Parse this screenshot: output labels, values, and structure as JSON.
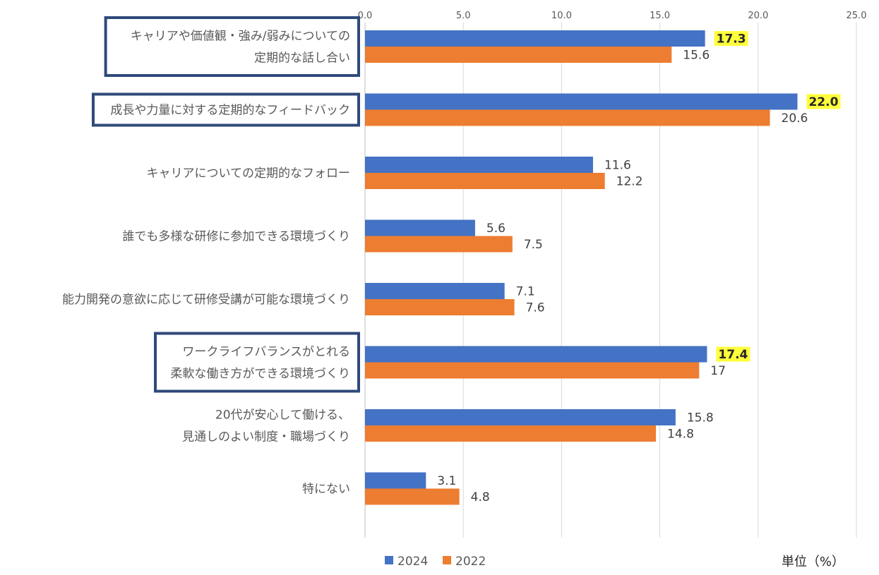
{
  "chart_data": {
    "type": "bar",
    "orientation": "horizontal",
    "categories": [
      [
        "キャリアや価値観・強み/弱みについての",
        "定期的な話し合い"
      ],
      [
        "成長や力量に対する定期的なフィードバック"
      ],
      [
        "キャリアについての定期的なフォロー"
      ],
      [
        "誰でも多様な研修に参加できる環境づくり"
      ],
      [
        "能力開発の意欲に応じて研修受講が可能な環境づくり"
      ],
      [
        "ワークライフバランスがとれる",
        "柔軟な働き方ができる環境づくり"
      ],
      [
        "20代が安心して働ける、",
        "見通しのよい制度・職場づくり"
      ],
      [
        "特にない"
      ]
    ],
    "boxed_categories": [
      0,
      1,
      5
    ],
    "series": [
      {
        "name": "2024",
        "color": "#4472C4",
        "values": [
          17.3,
          22.0,
          11.6,
          5.6,
          7.1,
          17.4,
          15.8,
          3.1
        ],
        "labels": [
          "17.3",
          "22.0",
          "11.6",
          "5.6",
          "7.1",
          "17.4",
          "15.8",
          "3.1"
        ],
        "highlighted": [
          0,
          1,
          5
        ]
      },
      {
        "name": "2022",
        "color": "#ED7D31",
        "values": [
          15.6,
          20.6,
          12.2,
          7.5,
          7.6,
          17,
          14.8,
          4.8
        ],
        "labels": [
          "15.6",
          "20.6",
          "12.2",
          "7.5",
          "7.6",
          "17",
          "14.8",
          "4.8"
        ],
        "highlighted": []
      }
    ],
    "xlim": [
      0,
      25
    ],
    "xticks": [
      "0.0",
      "5.0",
      "10.0",
      "15.0",
      "20.0",
      "25.0"
    ],
    "xtick_values": [
      0,
      5,
      10,
      15,
      20,
      25
    ],
    "grid": true,
    "legend_position": "bottom",
    "highlight_color": "#FFFF3C",
    "box_color": "#2F4A7A",
    "unit_label": "単位（%）"
  }
}
